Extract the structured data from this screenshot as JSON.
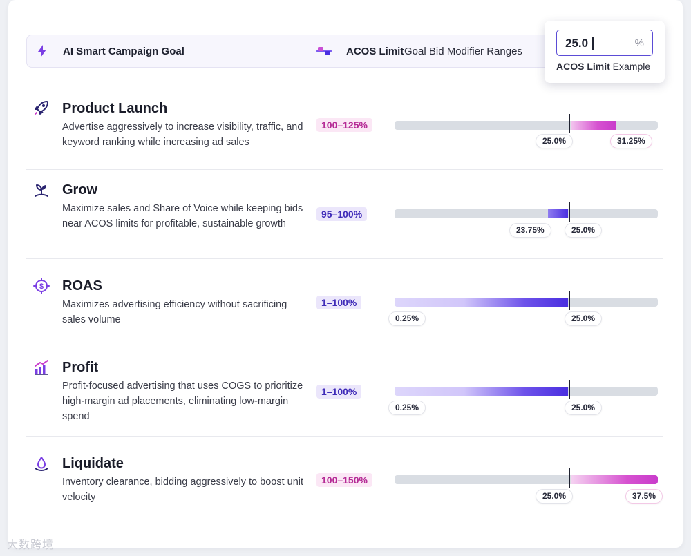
{
  "header": {
    "goal_label": "AI Smart Campaign Goal",
    "acos_bold": "ACOS Limit",
    "acos_rest": "Goal Bid Modifier Ranges"
  },
  "example": {
    "value": "25.0",
    "unit": "%",
    "caption_bold": "ACOS Limit",
    "caption_rest": "Example"
  },
  "colors": {
    "accent": "#4a2fe0",
    "pink": "#c93ccb",
    "track": "#d9dde3"
  },
  "goals": [
    {
      "name": "product-launch",
      "icon": "rocket-icon",
      "title": "Product Launch",
      "desc": "Advertise aggressively to increase visibility, traffic, and keyword ranking while increasing ad sales",
      "range": "100–125%",
      "chips": [
        "25.0%",
        "31.25%"
      ]
    },
    {
      "name": "grow",
      "icon": "sprout-icon",
      "title": "Grow",
      "desc": "Maximize sales and Share of Voice while keeping bids near ACOS limits for profitable, sustainable growth",
      "range": "95–100%",
      "chips": [
        "23.75%",
        "25.0%"
      ]
    },
    {
      "name": "roas",
      "icon": "dollar-target-icon",
      "title": "ROAS",
      "desc": "Maximizes advertising efficiency without sacrificing sales volume",
      "range": "1–100%",
      "chips": [
        "0.25%",
        "25.0%"
      ]
    },
    {
      "name": "profit",
      "icon": "bar-chart-icon",
      "title": "Profit",
      "desc": "Profit-focused advertising that uses COGS to prioritize high-margin ad placements, eliminating low-margin spend",
      "range": "1–100%",
      "chips": [
        "0.25%",
        "25.0%"
      ]
    },
    {
      "name": "liquidate",
      "icon": "water-drop-icon",
      "title": "Liquidate",
      "desc": "Inventory clearance, bidding aggressively to boost unit velocity",
      "range": "100–150%",
      "chips": [
        "25.0%",
        "37.5%"
      ]
    }
  ],
  "watermark": "大数跨境"
}
